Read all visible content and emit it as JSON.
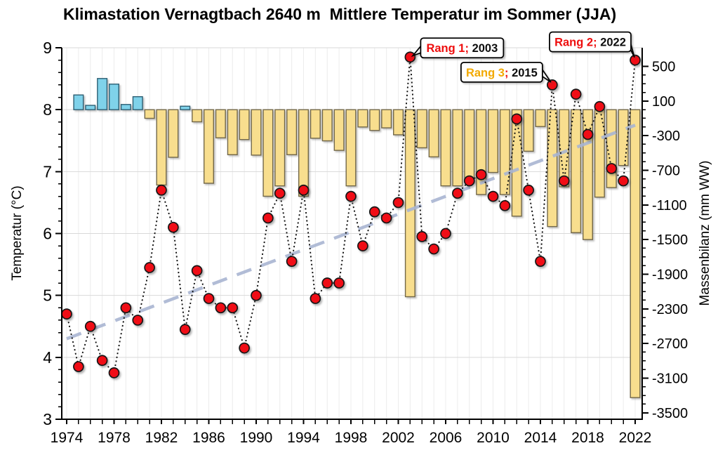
{
  "title": "Klimastation Vernagtbach 2640 m  Mittlere Temperatur im Sommer (JJA)",
  "y_left": {
    "label": "Temperatur (°C)",
    "min": 3,
    "max": 9,
    "major_ticks": [
      9,
      8,
      7,
      6,
      5,
      4,
      3
    ],
    "minor_step": 0.2
  },
  "y_right": {
    "label": "Massenbilanz (mm WW)",
    "min": -3500,
    "max": 500,
    "major_ticks": [
      500,
      100,
      -300,
      -700,
      -1100,
      -1500,
      -1900,
      -2300,
      -2700,
      -3100,
      -3500
    ],
    "minor_step": 100
  },
  "x_axis": {
    "tick_labels": [
      1974,
      1978,
      1982,
      1986,
      1990,
      1994,
      1998,
      2002,
      2006,
      2010,
      2014,
      2018,
      2022
    ]
  },
  "colors": {
    "bar_positive_fill": "#7FD2EA",
    "bar_positive_stroke": "#2E5F73",
    "bar_negative_fill": "#F8DE8E",
    "bar_negative_stroke": "#73684A",
    "dot_fill": "#F00F14",
    "dot_stroke": "#141414",
    "dotted_line": "#111111",
    "trend": "#A9B5D2",
    "grid_vertical": "#ECECEC",
    "grid_horizontal": "#D9D9D9",
    "axis": "#000000",
    "callout_bg": "#FFFFFF",
    "callout_border": "#000000",
    "rang_red": "#EE1111",
    "rang_gold": "#F2A900",
    "year_black": "#111111"
  },
  "chart_data": {
    "type": "combo",
    "title": "Klimastation Vernagtbach 2640 m  Mittlere Temperatur im Sommer (JJA)",
    "x": [
      1974,
      1975,
      1976,
      1977,
      1978,
      1979,
      1980,
      1981,
      1982,
      1983,
      1984,
      1985,
      1986,
      1987,
      1988,
      1989,
      1990,
      1991,
      1992,
      1993,
      1994,
      1995,
      1996,
      1997,
      1998,
      1999,
      2000,
      2001,
      2002,
      2003,
      2004,
      2005,
      2006,
      2007,
      2008,
      2009,
      2010,
      2011,
      2012,
      2013,
      2014,
      2015,
      2016,
      2017,
      2018,
      2019,
      2020,
      2021,
      2022
    ],
    "series": [
      {
        "name": "Mittlere Temperatur im Sommer (JJA)",
        "type": "line",
        "marker": "circle",
        "axis": "left",
        "unit": "°C",
        "values": [
          4.7,
          3.85,
          4.5,
          3.95,
          3.75,
          4.8,
          4.6,
          5.45,
          6.7,
          6.1,
          4.45,
          5.4,
          4.95,
          4.8,
          4.8,
          4.15,
          5.0,
          6.25,
          6.65,
          5.55,
          6.7,
          4.95,
          5.2,
          5.2,
          6.6,
          5.8,
          6.35,
          6.25,
          6.5,
          8.85,
          5.95,
          5.75,
          6.0,
          6.65,
          6.85,
          6.95,
          6.6,
          6.45,
          7.85,
          6.7,
          5.55,
          8.4,
          6.85,
          8.25,
          7.6,
          8.05,
          7.05,
          6.85,
          8.8
        ]
      },
      {
        "name": "Massenbilanz",
        "type": "bar",
        "axis": "right",
        "unit": "mm WW",
        "values": [
          null,
          170,
          50,
          360,
          295,
          60,
          150,
          -100,
          -870,
          -550,
          40,
          -140,
          -850,
          -325,
          -520,
          -345,
          -525,
          -1000,
          -880,
          -520,
          -1000,
          -330,
          -360,
          -470,
          -880,
          -200,
          -240,
          -210,
          -290,
          -2160,
          -440,
          -545,
          -880,
          -880,
          -835,
          -980,
          -725,
          -980,
          -1230,
          -480,
          -195,
          -1350,
          -890,
          -1420,
          -1500,
          -1010,
          -900,
          -645,
          -3325
        ]
      }
    ],
    "trend": {
      "type": "linear_dashed",
      "x_start": 1974,
      "y_start": 4.3,
      "x_end": 2022,
      "y_end": 7.75
    },
    "ylim_left": [
      3,
      9
    ],
    "ylim_right": [
      -3500,
      500
    ],
    "grid": true,
    "legend_position": "none",
    "annotations": [
      {
        "id": "rang1",
        "year": 2003,
        "temp": 8.85,
        "parts": [
          {
            "text": "Rang 1;",
            "color": "#EE1111"
          },
          {
            "text": " 2003",
            "color": "#111111"
          }
        ]
      },
      {
        "id": "rang3",
        "year": 2015,
        "temp": 8.4,
        "parts": [
          {
            "text": "Rang 3",
            "color": "#F2A900"
          },
          {
            "text": ";",
            "color": "#EE1111"
          },
          {
            "text": " 2015",
            "color": "#111111"
          }
        ]
      },
      {
        "id": "rang2",
        "year": 2022,
        "temp": 8.8,
        "parts": [
          {
            "text": "Rang 2;",
            "color": "#EE1111"
          },
          {
            "text": " 2022",
            "color": "#111111"
          }
        ]
      }
    ]
  }
}
